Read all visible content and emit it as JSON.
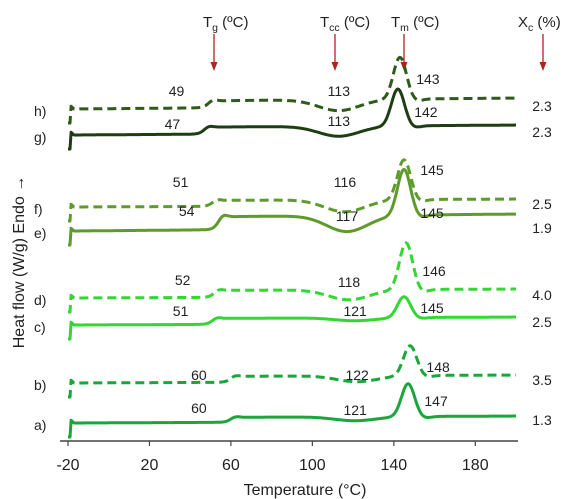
{
  "chart_data": {
    "type": "line",
    "xlabel": "Temperature (°C)",
    "ylabel": "Heat flow (W/g) Endo →",
    "xlim": [
      -20,
      200
    ],
    "xticks": [
      "-20",
      "20",
      "60",
      "100",
      "140",
      "180"
    ],
    "headers": {
      "tg": {
        "main": "T",
        "sub": "g",
        "suffix": " (ºC)"
      },
      "tcc": {
        "main": "T",
        "sub": "cc",
        "suffix": " (ºC)"
      },
      "tm": {
        "main": "T",
        "sub": "m",
        "suffix": " (ºC)"
      },
      "xc": {
        "main": "X",
        "sub": "c",
        "suffix": " (%)"
      }
    },
    "series": [
      {
        "label": "a)",
        "line": "solid",
        "color": "#1aa63a",
        "tg": "60",
        "tcc": "121",
        "tm": "147",
        "xc": "1.3"
      },
      {
        "label": "b)",
        "line": "dashed",
        "color": "#1aa63a",
        "tg": "60",
        "tcc": "122",
        "tm": "148",
        "xc": "3.5"
      },
      {
        "label": "c)",
        "line": "solid",
        "color": "#33d633",
        "tg": "51",
        "tcc": "121",
        "tm": "145",
        "xc": "2.5"
      },
      {
        "label": "d)",
        "line": "dashed",
        "color": "#33d633",
        "tg": "52",
        "tcc": "118",
        "tm": "146",
        "xc": "4.0"
      },
      {
        "label": "e)",
        "line": "solid",
        "color": "#5f9a2c",
        "tg": "54",
        "tcc": "117",
        "tm": "145",
        "xc": "1.9"
      },
      {
        "label": "f)",
        "line": "dashed",
        "color": "#5f9a2c",
        "tg": "51",
        "tcc": "116",
        "tm": "145",
        "xc": "2.5"
      },
      {
        "label": "g)",
        "line": "solid",
        "color": "#1f3d12",
        "tg": "47",
        "tcc": "113",
        "tm": "142",
        "xc": "2.3"
      },
      {
        "label": "h)",
        "line": "dashed",
        "color": "#2f5a1a",
        "tg": "49",
        "tcc": "113",
        "tm": "143",
        "xc": "2.3"
      }
    ],
    "arrow_color": "#b22222"
  }
}
